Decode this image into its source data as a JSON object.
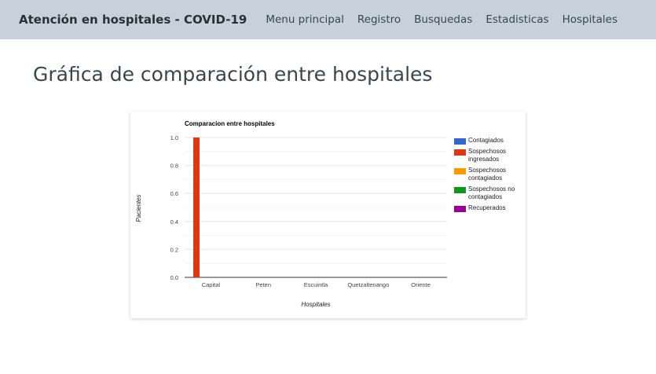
{
  "header": {
    "brand": "Atención en hospitales - COVID-19",
    "nav": [
      "Menu principal",
      "Registro",
      "Busquedas",
      "Estadisticas",
      "Hospitales"
    ]
  },
  "page_title": "Gráfica de comparación entre hospitales",
  "chart_data": {
    "type": "bar",
    "title": "Comparacion entre hospitales",
    "xlabel": "Hospitales",
    "ylabel": "Pacientes",
    "categories": [
      "Capital",
      "Peten",
      "Escuintla",
      "Quetzaltenango",
      "Oriente"
    ],
    "series": [
      {
        "name": "Contagiados",
        "color": "#3366cc",
        "values": [
          0,
          0,
          0,
          0,
          0
        ]
      },
      {
        "name": "Sospechosos ingresados",
        "color": "#dc3912",
        "values": [
          1,
          0,
          0,
          0,
          0
        ]
      },
      {
        "name": "Sospechosos contagiados",
        "color": "#ff9900",
        "values": [
          0,
          0,
          0,
          0,
          0
        ]
      },
      {
        "name": "Sospechosos no contagiados",
        "color": "#109618",
        "values": [
          0,
          0,
          0,
          0,
          0
        ]
      },
      {
        "name": "Recuperados",
        "color": "#990099",
        "values": [
          0,
          0,
          0,
          0,
          0
        ]
      }
    ],
    "ylim": [
      0,
      1
    ],
    "yticks": [
      "0.0",
      "0.2",
      "0.4",
      "0.6",
      "0.8",
      "1.0"
    ],
    "grid": true,
    "legend_position": "right"
  }
}
